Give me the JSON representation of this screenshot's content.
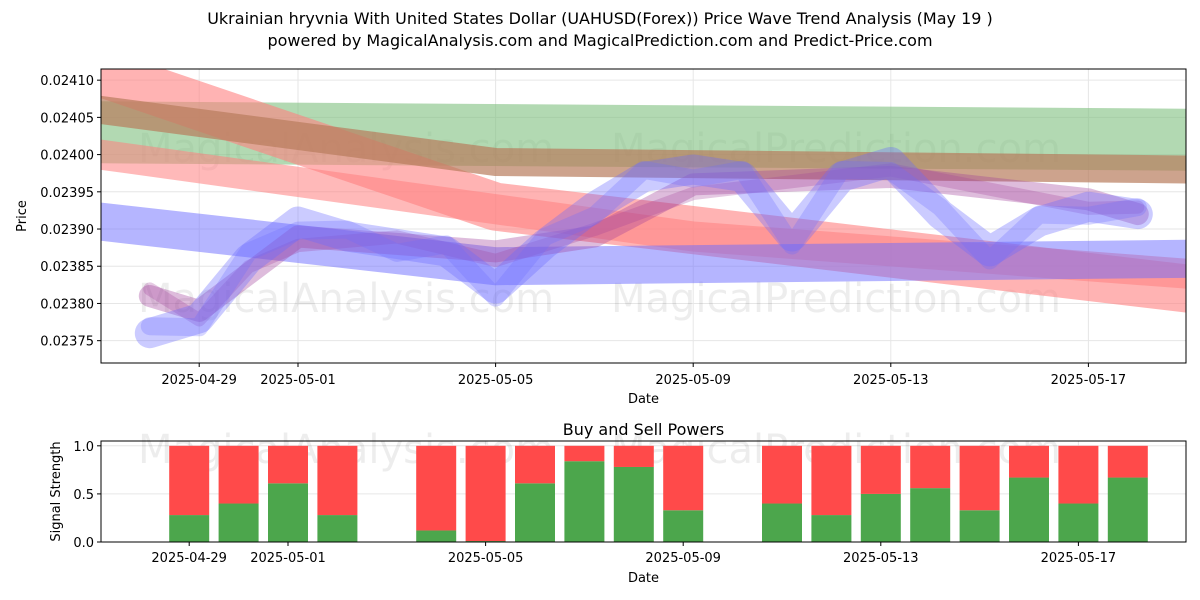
{
  "header": {
    "title_line1": "Ukrainian hryvnia With United States Dollar (UAHUSD(Forex)) Price Wave Trend Analysis (May 19 )",
    "title_line2": "powered by MagicalAnalysis.com and MagicalPrediction.com and Predict-Price.com"
  },
  "watermarks": [
    "MagicalAnalysis.com",
    "MagicalPrediction.com"
  ],
  "colors": {
    "buy": "#4ca64c",
    "sell": "#ff4a4a",
    "green_band": "#7ec07e",
    "red_band": "#ff8080",
    "blue_band": "#6b6bff",
    "purple": "#a0409a"
  },
  "chart_data": [
    {
      "type": "line",
      "title": "",
      "xlabel": "Date",
      "ylabel": "Price",
      "ylim": [
        0.02372,
        0.024115
      ],
      "x_tick_labels": [
        "2025-04-29",
        "2025-05-01",
        "2025-05-05",
        "2025-05-09",
        "2025-05-13",
        "2025-05-17"
      ],
      "y_tick_labels": [
        "0.02375",
        "0.02380",
        "0.02385",
        "0.02390",
        "0.02395",
        "0.02400",
        "0.02405",
        "0.02410"
      ],
      "series": [
        {
          "name": "green-trend-band",
          "x": [
            "2025-04-27",
            "2025-05-19"
          ],
          "values": [
            0.02403,
            0.02402
          ]
        },
        {
          "name": "red-trend-band",
          "x": [
            "2025-04-27",
            "2025-05-05",
            "2025-05-19"
          ],
          "values": [
            0.02411,
            0.02393,
            0.02382
          ]
        },
        {
          "name": "brown-trend-band",
          "x": [
            "2025-04-27",
            "2025-05-05",
            "2025-05-19"
          ],
          "values": [
            0.02406,
            0.02399,
            0.02398
          ]
        },
        {
          "name": "blue-trend-band",
          "x": [
            "2025-04-27",
            "2025-05-05",
            "2025-05-19"
          ],
          "values": [
            0.02391,
            0.02385,
            0.02386
          ]
        },
        {
          "name": "red-falling-band",
          "x": [
            "2025-04-27",
            "2025-05-09",
            "2025-05-19"
          ],
          "values": [
            0.024,
            0.02389,
            0.02384
          ]
        },
        {
          "name": "blue-wave",
          "x": [
            "2025-04-28",
            "2025-04-29",
            "2025-04-30",
            "2025-05-01",
            "2025-05-02",
            "2025-05-03",
            "2025-05-04",
            "2025-05-05",
            "2025-05-06",
            "2025-05-07",
            "2025-05-08",
            "2025-05-09",
            "2025-05-10",
            "2025-05-11",
            "2025-05-12",
            "2025-05-13",
            "2025-05-14",
            "2025-05-15",
            "2025-05-16",
            "2025-05-17",
            "2025-05-18"
          ],
          "values": [
            0.02376,
            0.02378,
            0.02386,
            0.02391,
            0.02389,
            0.02388,
            0.02387,
            0.02382,
            0.02388,
            0.02393,
            0.02397,
            0.02398,
            0.02397,
            0.02389,
            0.02397,
            0.02399,
            0.02392,
            0.02387,
            0.02391,
            0.02393,
            0.02392
          ]
        },
        {
          "name": "pink-wave",
          "x": [
            "2025-04-28",
            "2025-04-29",
            "2025-04-30",
            "2025-05-01",
            "2025-05-03",
            "2025-05-05",
            "2025-05-07",
            "2025-05-09",
            "2025-05-13",
            "2025-05-17",
            "2025-05-18"
          ],
          "values": [
            0.02381,
            0.02379,
            0.02384,
            0.02389,
            0.02388,
            0.02387,
            0.02389,
            0.02396,
            0.02397,
            0.02394,
            0.02392
          ]
        }
      ]
    },
    {
      "type": "bar",
      "title": "Buy and Sell Powers",
      "xlabel": "Date",
      "ylabel": "Signal Strength",
      "ylim": [
        0,
        1.05
      ],
      "x_tick_labels": [
        "2025-04-29",
        "2025-05-01",
        "2025-05-05",
        "2025-05-09",
        "2025-05-13",
        "2025-05-17"
      ],
      "y_tick_labels": [
        "0.0",
        "0.5",
        "1.0"
      ],
      "categories": [
        "2025-04-29",
        "2025-04-30",
        "2025-05-01",
        "2025-05-02",
        "2025-05-04",
        "2025-05-05",
        "2025-05-06",
        "2025-05-07",
        "2025-05-08",
        "2025-05-09",
        "2025-05-11",
        "2025-05-12",
        "2025-05-13",
        "2025-05-14",
        "2025-05-15",
        "2025-05-16",
        "2025-05-17",
        "2025-05-18"
      ],
      "series": [
        {
          "name": "Buy",
          "values": [
            0.28,
            0.4,
            0.61,
            0.28,
            0.12,
            0.01,
            0.61,
            0.84,
            0.78,
            0.33,
            0.4,
            0.28,
            0.5,
            0.56,
            0.33,
            0.67,
            0.4,
            0.67
          ]
        },
        {
          "name": "Sell",
          "values": [
            0.72,
            0.6,
            0.39,
            0.72,
            0.88,
            0.99,
            0.39,
            0.16,
            0.22,
            0.67,
            0.6,
            0.72,
            0.5,
            0.44,
            0.67,
            0.33,
            0.6,
            0.33
          ]
        }
      ]
    }
  ]
}
